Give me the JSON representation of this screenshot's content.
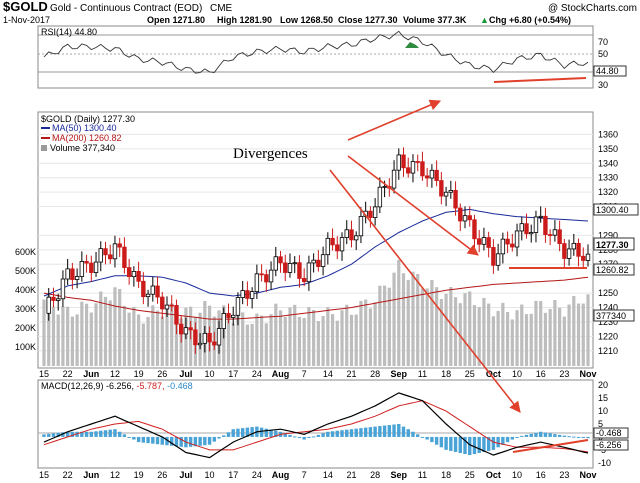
{
  "header": {
    "symbol": "$GOLD",
    "name": "Gold - Continuous Contract (EOD)",
    "exchange": "CME",
    "watermark": "@ StockCharts.com",
    "date": "1-Nov-2017",
    "open": "Open 1271.80",
    "high": "High 1281.90",
    "low": "Low 1268.50",
    "close": "Close 1277.30",
    "volume": "Volume 377.3K",
    "change": "Chg +6.80 (+0.54%)",
    "change_arrow": "▲"
  },
  "rsi_panel": {
    "label": "RSI(14) 44.80",
    "ticks": [
      "70",
      "50",
      "30"
    ],
    "current": "44.80"
  },
  "price_panel": {
    "legend_title": "$GOLD (Daily) 1277.30",
    "legend_ma50": "MA(50) 1300.40",
    "legend_ma200": "MA(200) 1260.82",
    "legend_volume": "Volume 377,340",
    "price_ticks": [
      "1360",
      "1350",
      "1340",
      "1330",
      "1320",
      "1310",
      "1290",
      "1280",
      "1270",
      "1250",
      "1240",
      "1230",
      "1220",
      "1210"
    ],
    "volume_ticks": [
      "600K",
      "500K",
      "400K",
      "300K",
      "200K",
      "100K"
    ],
    "tag_ma50": "1300.40",
    "tag_close": "1277.30",
    "tag_ma200": "1260.82",
    "tag_volume": "377340",
    "annotation": "Divergences"
  },
  "macd_panel": {
    "label": "MACD(12,26,9) -6.256, -5.787, -0.468",
    "label_main": "MACD(12,26,9) -6.256,",
    "label_signal": " -5.787,",
    "label_hist": " -0.468",
    "ticks": [
      "20",
      "15",
      "10",
      "5",
      "0",
      "-5",
      "-10"
    ],
    "tag_hist": "-0.468",
    "tag_macd": "-6.256"
  },
  "x_axis": {
    "labels_top": [
      "15",
      "22",
      "Jun",
      "12",
      "19",
      "26",
      "Jul",
      "10",
      "17",
      "24",
      "Aug",
      "7",
      "14",
      "21",
      "28",
      "Sep",
      "11",
      "18",
      "25",
      "Oct",
      "10",
      "16",
      "23",
      "Nov"
    ],
    "labels_bottom": [
      "15",
      "22",
      "Jun",
      "12",
      "19",
      "26",
      "Jul",
      "10",
      "17",
      "24",
      "Aug",
      "7",
      "14",
      "21",
      "28",
      "Sep",
      "11",
      "18",
      "25",
      "Oct",
      "10",
      "16",
      "23",
      "Nov"
    ]
  },
  "colors": {
    "up_candle": "#000000",
    "down_candle": "#cc1b1b",
    "ma50": "#1a2a9a",
    "ma200": "#b51616",
    "volume": "#bdbdbd",
    "macd_hist": "#4aa3d6",
    "arrows": "#e0402c",
    "rsi_green": "#2e8b3e"
  },
  "chart_data": {
    "type": "candlestick",
    "title": "$GOLD Gold - Continuous Contract (EOD) CME",
    "x": [
      "15",
      "22",
      "Jun",
      "12",
      "19",
      "26",
      "Jul",
      "10",
      "17",
      "24",
      "Aug",
      "7",
      "14",
      "21",
      "28",
      "Sep",
      "11",
      "18",
      "25",
      "Oct",
      "10",
      "16",
      "23",
      "Nov"
    ],
    "series": [
      {
        "name": "$GOLD (Daily)",
        "values": [
          1236,
          1262,
          1270,
          1282,
          1255,
          1245,
          1222,
          1215,
          1240,
          1258,
          1272,
          1262,
          1282,
          1290,
          1312,
          1340,
          1336,
          1320,
          1296,
          1275,
          1291,
          1300,
          1280,
          1277
        ]
      },
      {
        "name": "MA(50)",
        "values": [
          1248,
          1255,
          1258,
          1262,
          1262,
          1261,
          1257,
          1250,
          1248,
          1250,
          1254,
          1256,
          1262,
          1270,
          1282,
          1292,
          1300,
          1306,
          1308,
          1305,
          1303,
          1302,
          1301,
          1300
        ]
      },
      {
        "name": "MA(200)",
        "values": [
          1250,
          1247,
          1245,
          1241,
          1238,
          1236,
          1234,
          1232,
          1232,
          1233,
          1234,
          1236,
          1238,
          1240,
          1243,
          1246,
          1249,
          1252,
          1254,
          1256,
          1257,
          1258,
          1259,
          1261
        ]
      },
      {
        "name": "Volume",
        "values": [
          350000,
          280000,
          320000,
          400000,
          250000,
          300000,
          280000,
          310000,
          260000,
          240000,
          300000,
          280000,
          270000,
          290000,
          350000,
          520000,
          440000,
          380000,
          360000,
          300000,
          280000,
          320000,
          300000,
          377340
        ]
      },
      {
        "name": "RSI(14)",
        "values": [
          50,
          60,
          60,
          58,
          48,
          45,
          38,
          35,
          50,
          55,
          58,
          55,
          60,
          62,
          68,
          72,
          65,
          52,
          42,
          38,
          48,
          52,
          42,
          45
        ]
      },
      {
        "name": "MACD",
        "values": [
          -2,
          2,
          5,
          8,
          4,
          0,
          -6,
          -8,
          -2,
          2,
          3,
          1,
          5,
          8,
          12,
          17,
          14,
          5,
          -3,
          -7,
          -4,
          -2,
          -4,
          -6.256
        ]
      },
      {
        "name": "Signal",
        "values": [
          -3,
          0,
          3,
          5,
          6,
          3,
          -2,
          -5,
          -5,
          -2,
          1,
          2,
          3,
          5,
          8,
          12,
          14,
          10,
          4,
          -2,
          -4,
          -4,
          -4.5,
          -5.787
        ]
      }
    ],
    "ylim": [
      1205,
      1370
    ],
    "grid": true
  }
}
